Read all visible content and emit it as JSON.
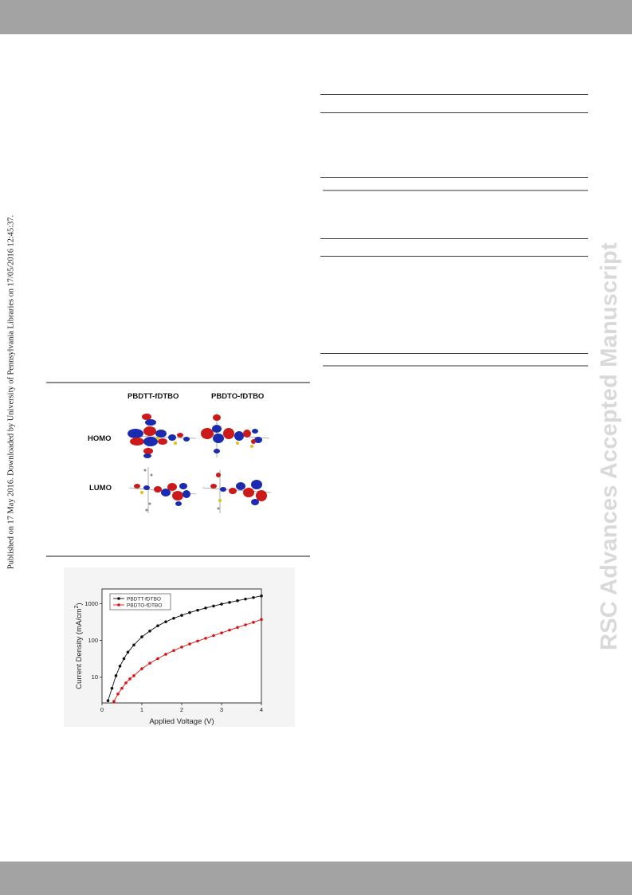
{
  "side_note": "Published on 17 May 2016. Downloaded by University of Pennsylvania Libraries on 17/05/2016 12:45:37.",
  "watermark": "RSC Advances Accepted Manuscript",
  "mo_figure": {
    "columns": [
      "PBDTT-fDTBO",
      "PBDTO-fDTBO"
    ],
    "rows": [
      "HOMO",
      "LUMO"
    ]
  },
  "chart_data": {
    "type": "line",
    "xlabel": "Applied Voltage (V)",
    "ylabel": "Current Density (mA/cm",
    "ylabel_sup": "2",
    "ylabel_end": ")",
    "yscale": "log",
    "xlim": [
      0,
      4
    ],
    "ylim": [
      2,
      2500
    ],
    "xticks": [
      "0",
      "1",
      "2",
      "3",
      "4"
    ],
    "yticks": [
      "10",
      "100",
      "1000"
    ],
    "legend_position": "top-left",
    "series": [
      {
        "name": "PBDTT-fDTBO",
        "color": "#111111",
        "x": [
          0.15,
          0.25,
          0.35,
          0.45,
          0.55,
          0.65,
          0.8,
          1.0,
          1.2,
          1.4,
          1.6,
          1.8,
          2.0,
          2.2,
          2.4,
          2.6,
          2.8,
          3.0,
          3.2,
          3.4,
          3.6,
          3.8,
          4.0
        ],
        "y": [
          2.3,
          5.0,
          11,
          20,
          32,
          48,
          75,
          125,
          180,
          250,
          320,
          400,
          480,
          570,
          660,
          760,
          860,
          970,
          1080,
          1200,
          1330,
          1460,
          1620
        ]
      },
      {
        "name": "PBDTO-fDTBO",
        "color": "#dd1111",
        "x": [
          0.3,
          0.4,
          0.5,
          0.6,
          0.7,
          0.8,
          1.0,
          1.2,
          1.4,
          1.6,
          1.8,
          2.0,
          2.2,
          2.4,
          2.6,
          2.8,
          3.0,
          3.2,
          3.4,
          3.6,
          3.8,
          4.0
        ],
        "y": [
          2.2,
          3.5,
          5.0,
          7.0,
          9.0,
          11,
          17,
          24,
          32,
          42,
          53,
          66,
          80,
          96,
          114,
          135,
          160,
          190,
          225,
          265,
          310,
          370
        ]
      }
    ]
  }
}
